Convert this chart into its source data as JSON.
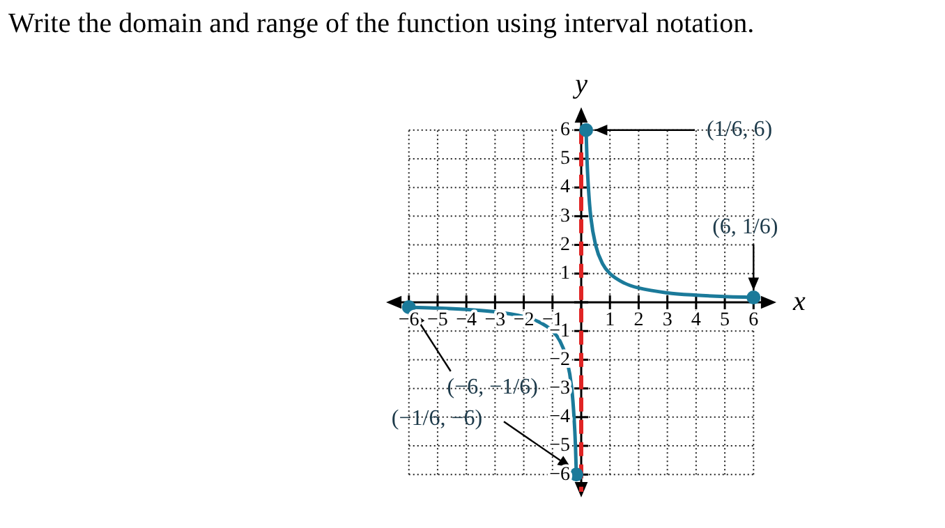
{
  "chart_data": {
    "type": "line",
    "title": "Write the domain and range of the function using interval notation.",
    "xlabel": "x",
    "ylabel": "y",
    "xlim": [
      -6.6,
      6.6
    ],
    "ylim": [
      -6.6,
      6.6
    ],
    "xticks": [
      -6,
      -5,
      -4,
      -3,
      -2,
      -1,
      {
        "value": 0,
        "label": null
      },
      1,
      2,
      3,
      4,
      5,
      6
    ],
    "yticks": [
      -6,
      -5,
      -4,
      -3,
      -2,
      -1,
      {
        "value": 0,
        "label": null
      },
      1,
      2,
      3,
      4,
      5,
      6
    ],
    "grid": true,
    "legend": false,
    "series": [
      {
        "color": "#1b7a9a",
        "marker": "none",
        "x": [
          0.17,
          0.2,
          0.25,
          0.33,
          0.5,
          0.75,
          1,
          1.5,
          2,
          3,
          4,
          5,
          6
        ],
        "values": [
          6,
          5,
          4,
          3,
          2,
          1.33,
          1,
          0.67,
          0.5,
          0.33,
          0.25,
          0.2,
          0.17
        ]
      },
      {
        "color": "#1b7a9a",
        "marker": "none",
        "x": [
          -6,
          -5,
          -4,
          -3,
          -2,
          -1.5,
          -1,
          -0.75,
          -0.5,
          -0.33,
          -0.25,
          -0.2,
          -0.17
        ],
        "values": [
          -0.17,
          -0.2,
          -0.25,
          -0.33,
          -0.5,
          -0.67,
          -1,
          -1.33,
          -2,
          -3,
          -4,
          -5,
          -6
        ]
      },
      {
        "type": "scatter",
        "color": "#1b7a9a",
        "marker": "circle",
        "x": [
          0.17,
          6,
          -6,
          -0.17
        ],
        "values": [
          6,
          0.17,
          -0.17,
          -6
        ]
      }
    ],
    "ref_lines": [
      {
        "axis": "x",
        "value": 0,
        "color": "#e02424",
        "line_style": "dashed"
      }
    ],
    "annotations": [
      {
        "text": "(1/6, 6)",
        "x": 0.17,
        "y": 6
      },
      {
        "text": "(6, 1/6)",
        "x": 6,
        "y": 0.17
      },
      {
        "text": "(−6, −1/6)",
        "x": -6,
        "y": -0.17
      },
      {
        "text": "(−1/6, −6)",
        "x": -0.17,
        "y": -6
      }
    ]
  }
}
